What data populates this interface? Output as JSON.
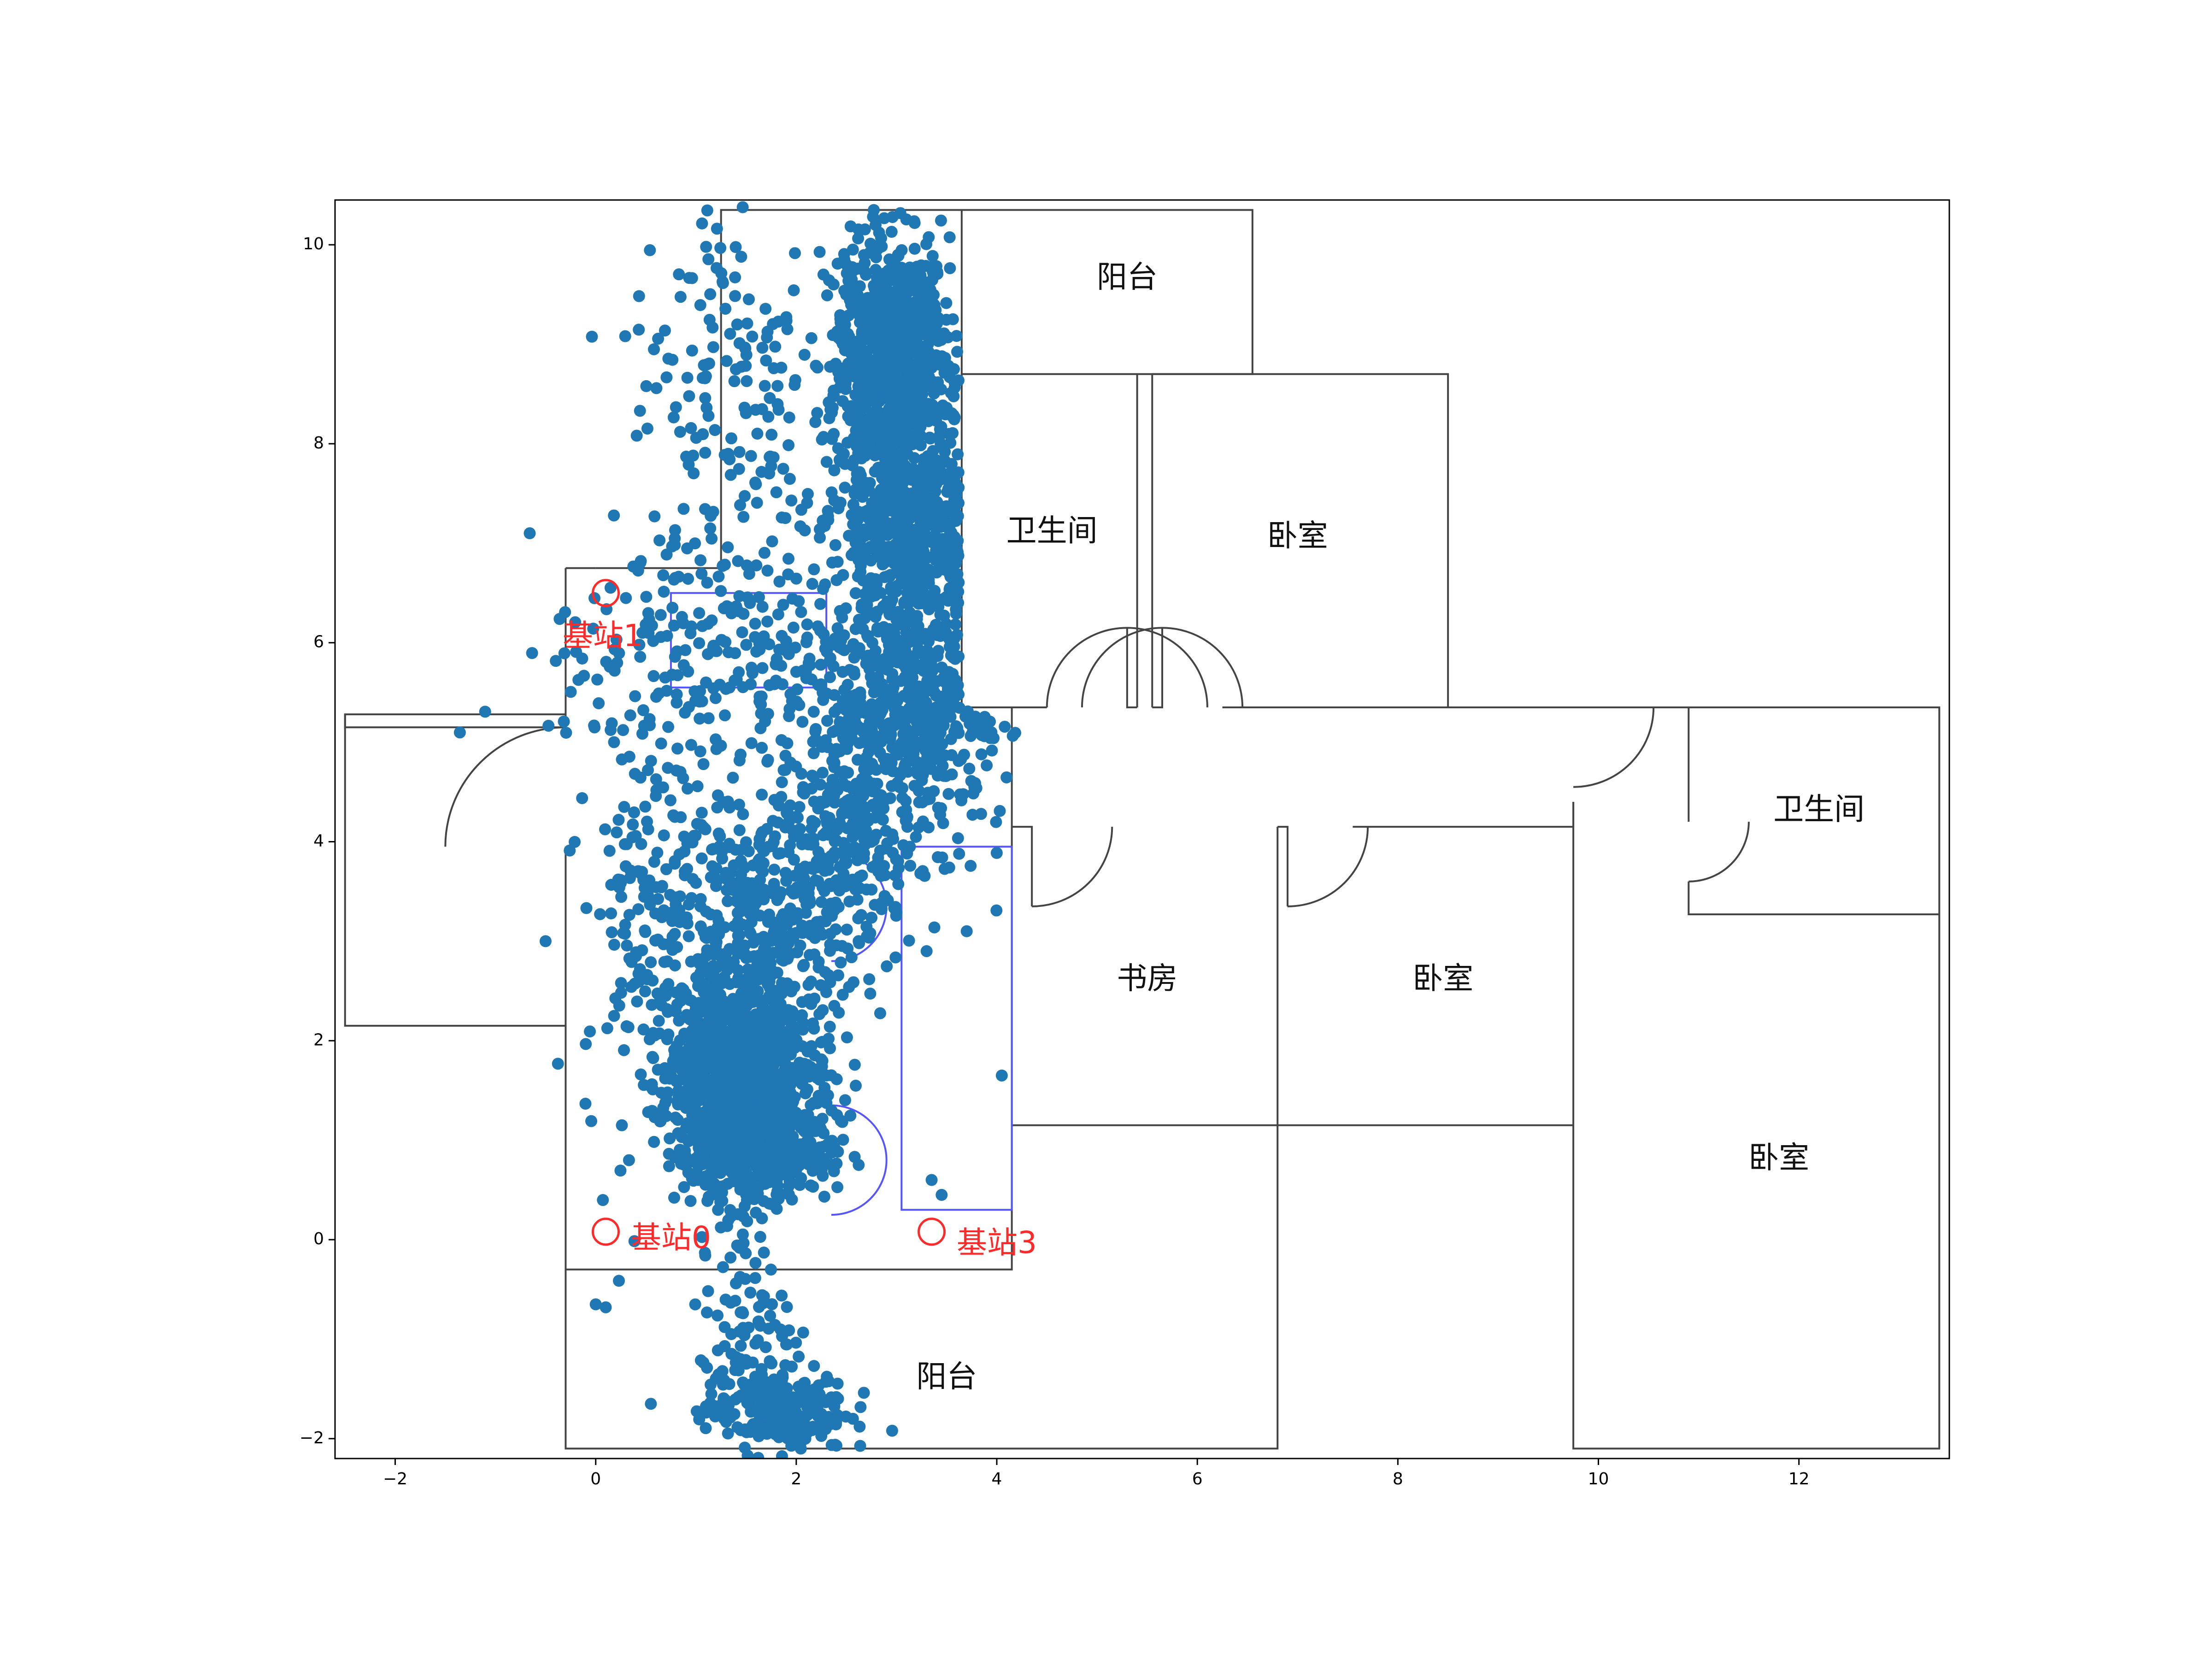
{
  "chart_data": {
    "type": "scatter",
    "title": "",
    "xlabel": "",
    "ylabel": "",
    "xlim": [
      -2.6,
      13.5
    ],
    "ylim": [
      -2.2,
      10.45
    ],
    "x_ticks": [
      -2,
      0,
      2,
      4,
      6,
      8,
      10,
      12
    ],
    "y_ticks": [
      -2,
      0,
      2,
      4,
      6,
      8,
      10
    ],
    "grid": false,
    "legend": "none",
    "point_color": "#1f77b4",
    "wall_color": "#444444",
    "blue_outline_color": "#5555ff",
    "station_color": "#ff2a2a",
    "clusters": [
      {
        "cx": 2.95,
        "cy": 8.85,
        "sx": 0.28,
        "sy": 0.6,
        "n": 900
      },
      {
        "cx": 3.1,
        "cy": 7.1,
        "sx": 0.35,
        "sy": 0.6,
        "n": 600
      },
      {
        "cx": 3.15,
        "cy": 5.3,
        "sx": 0.45,
        "sy": 0.55,
        "n": 500
      },
      {
        "cx": 2.4,
        "cy": 4.0,
        "sx": 0.55,
        "sy": 0.55,
        "n": 350
      },
      {
        "cx": 1.6,
        "cy": 3.0,
        "sx": 0.55,
        "sy": 0.6,
        "n": 300
      },
      {
        "cx": 1.45,
        "cy": 1.7,
        "sx": 0.35,
        "sy": 0.45,
        "n": 800
      },
      {
        "cx": 1.6,
        "cy": 1.0,
        "sx": 0.35,
        "sy": 0.3,
        "n": 600
      },
      {
        "cx": 1.3,
        "cy": 6.0,
        "sx": 0.8,
        "sy": 0.6,
        "n": 220
      },
      {
        "cx": 1.4,
        "cy": 8.5,
        "sx": 0.55,
        "sy": 1.1,
        "n": 170
      },
      {
        "cx": 0.6,
        "cy": 3.5,
        "sx": 0.35,
        "sy": 1.3,
        "n": 220
      },
      {
        "cx": 1.45,
        "cy": -0.7,
        "sx": 0.22,
        "sy": 0.55,
        "n": 90
      },
      {
        "cx": 1.8,
        "cy": -1.7,
        "sx": 0.35,
        "sy": 0.22,
        "n": 260
      }
    ],
    "explicit_points": [
      {
        "x": -0.5,
        "y": 3.0
      },
      {
        "x": 3.35,
        "y": 0.6
      },
      {
        "x": 3.45,
        "y": 0.45
      },
      {
        "x": 4.05,
        "y": 1.65
      },
      {
        "x": 3.7,
        "y": 3.1
      },
      {
        "x": 3.3,
        "y": 2.9
      },
      {
        "x": 0.0,
        "y": -0.65
      },
      {
        "x": 0.1,
        "y": -0.68
      },
      {
        "x": 0.55,
        "y": -1.65
      }
    ],
    "walls": [
      [
        [
          0.0,
          6.75
        ],
        [
          1.25,
          6.75
        ],
        [
          1.25,
          10.35
        ],
        [
          3.65,
          10.35
        ],
        [
          3.65,
          5.35
        ]
      ],
      [
        [
          3.65,
          10.35
        ],
        [
          6.55,
          10.35
        ],
        [
          6.55,
          8.7
        ],
        [
          3.65,
          8.7
        ]
      ],
      [
        [
          5.4,
          8.7
        ],
        [
          5.4,
          5.35
        ]
      ],
      [
        [
          5.55,
          8.7
        ],
        [
          5.55,
          5.35
        ]
      ],
      [
        [
          5.55,
          8.7
        ],
        [
          8.5,
          8.7
        ],
        [
          8.5,
          5.35
        ]
      ],
      [
        [
          3.65,
          5.35
        ],
        [
          4.5,
          5.35
        ]
      ],
      [
        [
          5.4,
          5.35
        ],
        [
          5.3,
          5.35
        ],
        [
          5.3,
          6.15
        ]
      ],
      [
        [
          5.55,
          5.35
        ],
        [
          5.65,
          5.35
        ],
        [
          5.65,
          6.15
        ]
      ],
      [
        [
          6.25,
          5.35
        ],
        [
          9.8,
          5.35
        ]
      ],
      [
        [
          -0.3,
          6.75
        ],
        [
          0.0,
          6.75
        ]
      ],
      [
        [
          -0.3,
          6.75
        ],
        [
          -0.3,
          5.15
        ],
        [
          -2.5,
          5.15
        ],
        [
          -2.5,
          5.28
        ],
        [
          -0.3,
          5.28
        ]
      ],
      [
        [
          -0.3,
          3.95
        ],
        [
          -0.3,
          2.15
        ],
        [
          -2.5,
          2.15
        ],
        [
          -2.5,
          5.28
        ]
      ],
      [
        [
          -0.3,
          2.15
        ],
        [
          -0.3,
          -0.3
        ],
        [
          4.15,
          -0.3
        ],
        [
          4.15,
          5.35
        ]
      ],
      [
        [
          -0.3,
          -0.3
        ],
        [
          -0.3,
          -2.1
        ],
        [
          6.8,
          -2.1
        ],
        [
          6.8,
          4.15
        ]
      ],
      [
        [
          4.15,
          4.15
        ],
        [
          4.35,
          4.15
        ],
        [
          4.35,
          3.35
        ]
      ],
      [
        [
          4.15,
          1.15
        ],
        [
          9.75,
          1.15
        ]
      ],
      [
        [
          6.8,
          4.15
        ],
        [
          6.9,
          4.15
        ],
        [
          6.9,
          3.35
        ]
      ],
      [
        [
          7.55,
          4.15
        ],
        [
          9.75,
          4.15
        ],
        [
          9.75,
          4.4
        ]
      ],
      [
        [
          9.75,
          4.4
        ],
        [
          9.75,
          -2.1
        ],
        [
          13.4,
          -2.1
        ],
        [
          13.4,
          5.35
        ],
        [
          9.75,
          5.35
        ]
      ],
      [
        [
          10.9,
          5.35
        ],
        [
          10.9,
          4.2
        ]
      ],
      [
        [
          10.9,
          3.6
        ],
        [
          10.9,
          3.27
        ],
        [
          13.4,
          3.27
        ]
      ]
    ],
    "door_arcs": [
      {
        "cx": -0.3,
        "cy": 3.95,
        "r": 1.2,
        "start": 90,
        "end": 180
      },
      {
        "cx": 5.3,
        "cy": 5.35,
        "r": 0.8,
        "start": 0,
        "end": 180
      },
      {
        "cx": 5.65,
        "cy": 5.35,
        "r": 0.8,
        "start": 0,
        "end": 180
      },
      {
        "cx": 4.35,
        "cy": 4.15,
        "r": 0.8,
        "start": 270,
        "end": 360
      },
      {
        "cx": 6.9,
        "cy": 4.15,
        "r": 0.8,
        "start": 270,
        "end": 360
      },
      {
        "cx": 9.75,
        "cy": 5.35,
        "r": 0.8,
        "start": 270,
        "end": 360
      },
      {
        "cx": 10.9,
        "cy": 4.2,
        "r": 0.6,
        "start": 270,
        "end": 360
      }
    ],
    "blue_rects": [
      {
        "x0": 0.75,
        "y0": 5.55,
        "x1": 2.3,
        "y1": 6.5
      },
      {
        "x0": 3.05,
        "y0": 0.3,
        "x1": 4.15,
        "y1": 3.95
      }
    ],
    "blue_arcs": [
      {
        "cx": 2.35,
        "cy": 3.35,
        "r": 0.55
      },
      {
        "cx": 2.35,
        "cy": 0.8,
        "r": 0.55
      }
    ],
    "rooms": [
      {
        "label": "阳台",
        "x": 5.3,
        "y": 9.65
      },
      {
        "label": "卫生间",
        "x": 4.55,
        "y": 7.1
      },
      {
        "label": "卧室",
        "x": 7.0,
        "y": 7.05
      },
      {
        "label": "卫生间",
        "x": 12.2,
        "y": 4.3
      },
      {
        "label": "书房",
        "x": 5.5,
        "y": 2.6
      },
      {
        "label": "卧室",
        "x": 8.45,
        "y": 2.6
      },
      {
        "label": "卧室",
        "x": 11.8,
        "y": 0.8
      },
      {
        "label": "阳台",
        "x": 3.5,
        "y": -1.4
      }
    ],
    "stations": [
      {
        "label": "基站1",
        "x": 0.1,
        "y": 6.5,
        "label_x": -0.33,
        "label_y": 6.05
      },
      {
        "label": "基站0",
        "x": 0.1,
        "y": 0.08,
        "label_x": 0.35,
        "label_y": 0.0
      },
      {
        "label": "基站3",
        "x": 3.35,
        "y": 0.08,
        "label_x": 3.6,
        "label_y": -0.05
      }
    ]
  }
}
